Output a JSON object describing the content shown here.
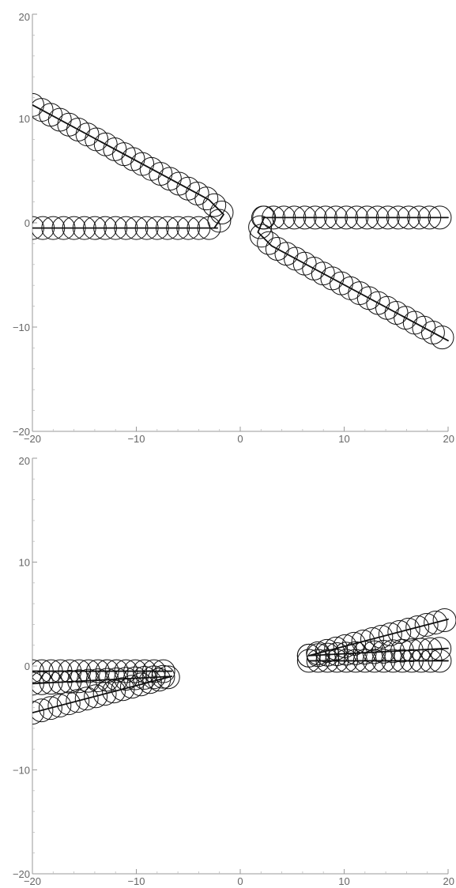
{
  "chart_data": [
    {
      "type": "line",
      "title": "",
      "xlabel": "",
      "ylabel": "",
      "xlim": [
        -20,
        20
      ],
      "ylim": [
        -20,
        20
      ],
      "x_ticks": [
        -20,
        -10,
        0,
        10,
        20
      ],
      "y_ticks": [
        -20,
        -10,
        0,
        10,
        20
      ],
      "x_tick_labels": [
        "−20",
        "−10",
        "0",
        "10",
        "20"
      ],
      "y_tick_labels": [
        "−20",
        "−10",
        "0",
        "10",
        "20"
      ],
      "grid": false,
      "legend": "none",
      "marker": "circle",
      "marker_radius": 1.1,
      "marker_spacing": 1.0,
      "series": [
        {
          "x": [
            -20,
            -2.2
          ],
          "y": [
            -0.5,
            -0.5
          ]
        },
        {
          "x": [
            -20,
            -3,
            -1.6,
            -2.5
          ],
          "y": [
            11.3,
            2.2,
            0.8,
            -0.5
          ]
        },
        {
          "x": [
            2.2,
            20
          ],
          "y": [
            0.5,
            0.5
          ]
        },
        {
          "x": [
            2.3,
            1.7,
            3,
            20
          ],
          "y": [
            0.5,
            -0.9,
            -2.2,
            -11.3
          ]
        }
      ]
    },
    {
      "type": "line",
      "title": "",
      "xlabel": "",
      "ylabel": "",
      "xlim": [
        -20,
        20
      ],
      "ylim": [
        -20,
        20
      ],
      "x_ticks": [
        -20,
        -10,
        0,
        10,
        20
      ],
      "y_ticks": [
        -20,
        -10,
        0,
        10,
        20
      ],
      "x_tick_labels": [
        "−20",
        "−10",
        "0",
        "10",
        "20"
      ],
      "y_tick_labels": [
        "−20",
        "−10",
        "0",
        "10",
        "20"
      ],
      "grid": false,
      "legend": "none",
      "marker": "circle",
      "marker_radius": 1.1,
      "marker_spacing": 0.9,
      "series": [
        {
          "x": [
            -20,
            -6.6
          ],
          "y": [
            -0.5,
            -0.5
          ]
        },
        {
          "x": [
            -20,
            -6.6
          ],
          "y": [
            -1.7,
            -1.0
          ]
        },
        {
          "x": [
            -20,
            -6.6
          ],
          "y": [
            -4.5,
            -1.0
          ]
        },
        {
          "x": [
            6.6,
            20
          ],
          "y": [
            0.5,
            0.5
          ]
        },
        {
          "x": [
            6.6,
            20
          ],
          "y": [
            1.0,
            1.7
          ]
        },
        {
          "x": [
            6.6,
            20
          ],
          "y": [
            1.0,
            4.5
          ]
        }
      ]
    }
  ]
}
